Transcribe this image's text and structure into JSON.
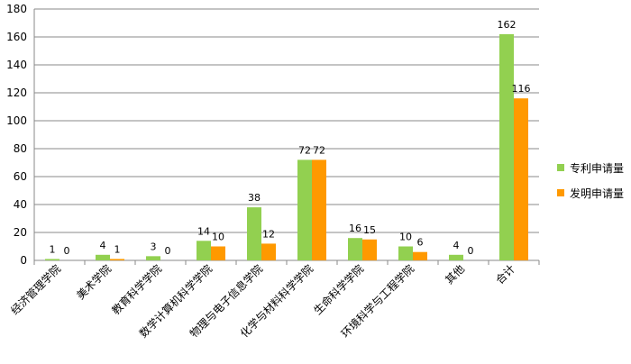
{
  "chart_data": {
    "type": "bar",
    "title": "",
    "xlabel": "",
    "ylabel": "",
    "ylim": [
      0,
      180
    ],
    "yticks": [
      0,
      20,
      40,
      60,
      80,
      100,
      120,
      140,
      160,
      180
    ],
    "grid": true,
    "legend_position": "right",
    "categories": [
      "经济管理学院",
      "美术学院",
      "教育科学学院",
      "数学计算机科学学院",
      "物理与电子信息学院",
      "化学与材料科学学院",
      "生命科学学院",
      "环境科学与工程学院",
      "其他",
      "合计"
    ],
    "series": [
      {
        "name": "专利申请量",
        "color": "#92d050",
        "values": [
          1,
          4,
          3,
          14,
          38,
          72,
          16,
          10,
          4,
          162
        ]
      },
      {
        "name": "发明申请量",
        "color": "#ff9900",
        "values": [
          0,
          1,
          0,
          10,
          12,
          72,
          15,
          6,
          0,
          116
        ]
      }
    ]
  }
}
